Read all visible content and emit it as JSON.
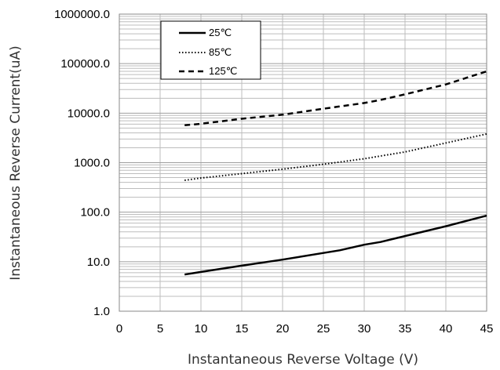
{
  "chart_data": {
    "type": "line",
    "title": "",
    "xlabel": "Instantaneous Reverse Voltage (V)",
    "ylabel": "Instantaneous Reverse Current(uA)",
    "xlim": [
      0,
      45
    ],
    "ylim": [
      1,
      1000000
    ],
    "yscale": "log",
    "x_ticks": [
      "0",
      "5",
      "10",
      "15",
      "20",
      "25",
      "30",
      "35",
      "40",
      "45"
    ],
    "y_ticks": [
      "1.0",
      "10.0",
      "100.0",
      "1000.0",
      "10000.0",
      "100000.0",
      "1000000.0"
    ],
    "grid": true,
    "legend_position": "top-left",
    "series": [
      {
        "name": "25℃",
        "style": "solid",
        "x": [
          8,
          10,
          15,
          20,
          25,
          27,
          30,
          32,
          35,
          40,
          45
        ],
        "y": [
          5.5,
          6.2,
          8.3,
          11,
          15,
          17,
          22,
          25,
          33,
          52,
          85
        ]
      },
      {
        "name": "85℃",
        "style": "dotted",
        "x": [
          8,
          10,
          15,
          20,
          25,
          30,
          35,
          40,
          45
        ],
        "y": [
          440,
          490,
          600,
          740,
          930,
          1200,
          1650,
          2500,
          3800
        ]
      },
      {
        "name": "125℃",
        "style": "dashed",
        "x": [
          8,
          10,
          15,
          20,
          25,
          30,
          32,
          35,
          40,
          45
        ],
        "y": [
          5700,
          6100,
          7700,
          9300,
          12300,
          16000,
          18500,
          24000,
          38000,
          70000
        ]
      }
    ],
    "colors": {
      "line": "#000000",
      "grid": "#bdbdbd",
      "axis_label": "#333333"
    }
  }
}
